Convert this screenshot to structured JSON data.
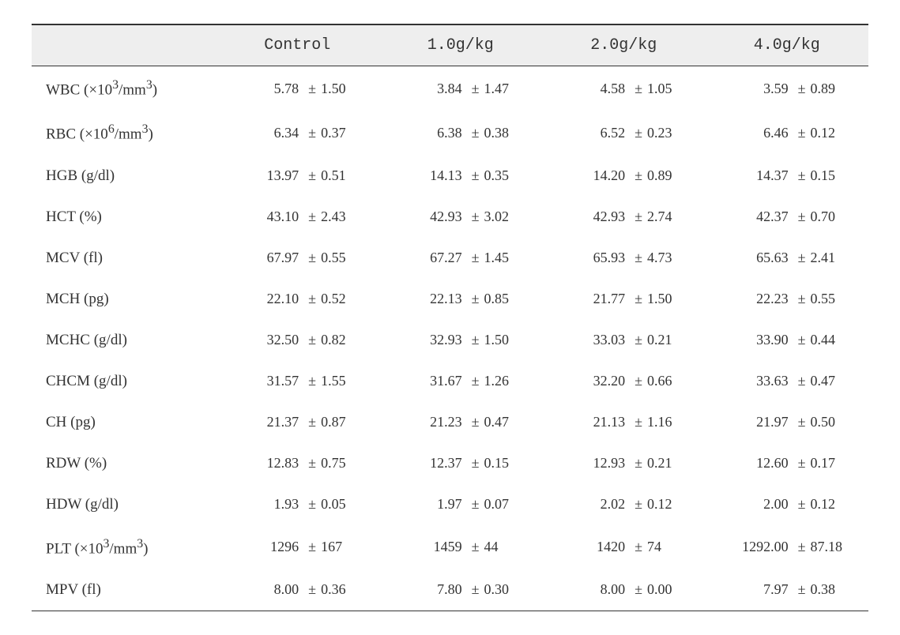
{
  "table": {
    "header_bg": "#eeeeee",
    "border_color": "#333333",
    "columns": [
      {
        "label": ""
      },
      {
        "label": "Control"
      },
      {
        "label": "1.0g/kg"
      },
      {
        "label": "2.0g/kg"
      },
      {
        "label": "4.0g/kg"
      }
    ],
    "rows": [
      {
        "param_html": "WBC (×10<sup>3</sup>/mm<sup>3</sup>)",
        "cells": [
          {
            "mean": "5.78",
            "sd": "1.50"
          },
          {
            "mean": "3.84",
            "sd": "1.47"
          },
          {
            "mean": "4.58",
            "sd": "1.05"
          },
          {
            "mean": "3.59",
            "sd": "0.89"
          }
        ]
      },
      {
        "param_html": "RBC (×10<sup>6</sup>/mm<sup>3</sup>)",
        "cells": [
          {
            "mean": "6.34",
            "sd": "0.37"
          },
          {
            "mean": "6.38",
            "sd": "0.38"
          },
          {
            "mean": "6.52",
            "sd": "0.23"
          },
          {
            "mean": "6.46",
            "sd": "0.12"
          }
        ]
      },
      {
        "param_html": "HGB (g/dl)",
        "cells": [
          {
            "mean": "13.97",
            "sd": "0.51"
          },
          {
            "mean": "14.13",
            "sd": "0.35"
          },
          {
            "mean": "14.20",
            "sd": "0.89"
          },
          {
            "mean": "14.37",
            "sd": "0.15"
          }
        ]
      },
      {
        "param_html": "HCT (%)",
        "cells": [
          {
            "mean": "43.10",
            "sd": "2.43"
          },
          {
            "mean": "42.93",
            "sd": "3.02"
          },
          {
            "mean": "42.93",
            "sd": "2.74"
          },
          {
            "mean": "42.37",
            "sd": "0.70"
          }
        ]
      },
      {
        "param_html": "MCV (fl)",
        "cells": [
          {
            "mean": "67.97",
            "sd": "0.55"
          },
          {
            "mean": "67.27",
            "sd": "1.45"
          },
          {
            "mean": "65.93",
            "sd": "4.73"
          },
          {
            "mean": "65.63",
            "sd": "2.41"
          }
        ]
      },
      {
        "param_html": "MCH (pg)",
        "cells": [
          {
            "mean": "22.10",
            "sd": "0.52"
          },
          {
            "mean": "22.13",
            "sd": "0.85"
          },
          {
            "mean": "21.77",
            "sd": "1.50"
          },
          {
            "mean": "22.23",
            "sd": "0.55"
          }
        ]
      },
      {
        "param_html": "MCHC (g/dl)",
        "cells": [
          {
            "mean": "32.50",
            "sd": "0.82"
          },
          {
            "mean": "32.93",
            "sd": "1.50"
          },
          {
            "mean": "33.03",
            "sd": "0.21"
          },
          {
            "mean": "33.90",
            "sd": "0.44"
          }
        ]
      },
      {
        "param_html": "CHCM (g/dl)",
        "cells": [
          {
            "mean": "31.57",
            "sd": "1.55"
          },
          {
            "mean": "31.67",
            "sd": "1.26"
          },
          {
            "mean": "32.20",
            "sd": "0.66"
          },
          {
            "mean": "33.63",
            "sd": "0.47"
          }
        ]
      },
      {
        "param_html": "CH (pg)",
        "cells": [
          {
            "mean": "21.37",
            "sd": "0.87"
          },
          {
            "mean": "21.23",
            "sd": "0.47"
          },
          {
            "mean": "21.13",
            "sd": "1.16"
          },
          {
            "mean": "21.97",
            "sd": "0.50"
          }
        ]
      },
      {
        "param_html": "RDW (%)",
        "cells": [
          {
            "mean": "12.83",
            "sd": "0.75"
          },
          {
            "mean": "12.37",
            "sd": "0.15"
          },
          {
            "mean": "12.93",
            "sd": "0.21"
          },
          {
            "mean": "12.60",
            "sd": "0.17"
          }
        ]
      },
      {
        "param_html": "HDW (g/dl)",
        "cells": [
          {
            "mean": "1.93",
            "sd": "0.05"
          },
          {
            "mean": "1.97",
            "sd": "0.07"
          },
          {
            "mean": "2.02",
            "sd": "0.12"
          },
          {
            "mean": "2.00",
            "sd": "0.12"
          }
        ]
      },
      {
        "param_html": "PLT (×10<sup>3</sup>/mm<sup>3</sup>)",
        "cells": [
          {
            "mean": "1296",
            "sd": "167"
          },
          {
            "mean": "1459",
            "sd": "44"
          },
          {
            "mean": "1420",
            "sd": "74"
          },
          {
            "mean": "1292.00",
            "sd": "87.18"
          }
        ]
      },
      {
        "param_html": "MPV (fl)",
        "cells": [
          {
            "mean": "8.00",
            "sd": "0.36"
          },
          {
            "mean": "7.80",
            "sd": "0.30"
          },
          {
            "mean": "8.00",
            "sd": "0.00"
          },
          {
            "mean": "7.97",
            "sd": "0.38"
          }
        ]
      }
    ]
  }
}
